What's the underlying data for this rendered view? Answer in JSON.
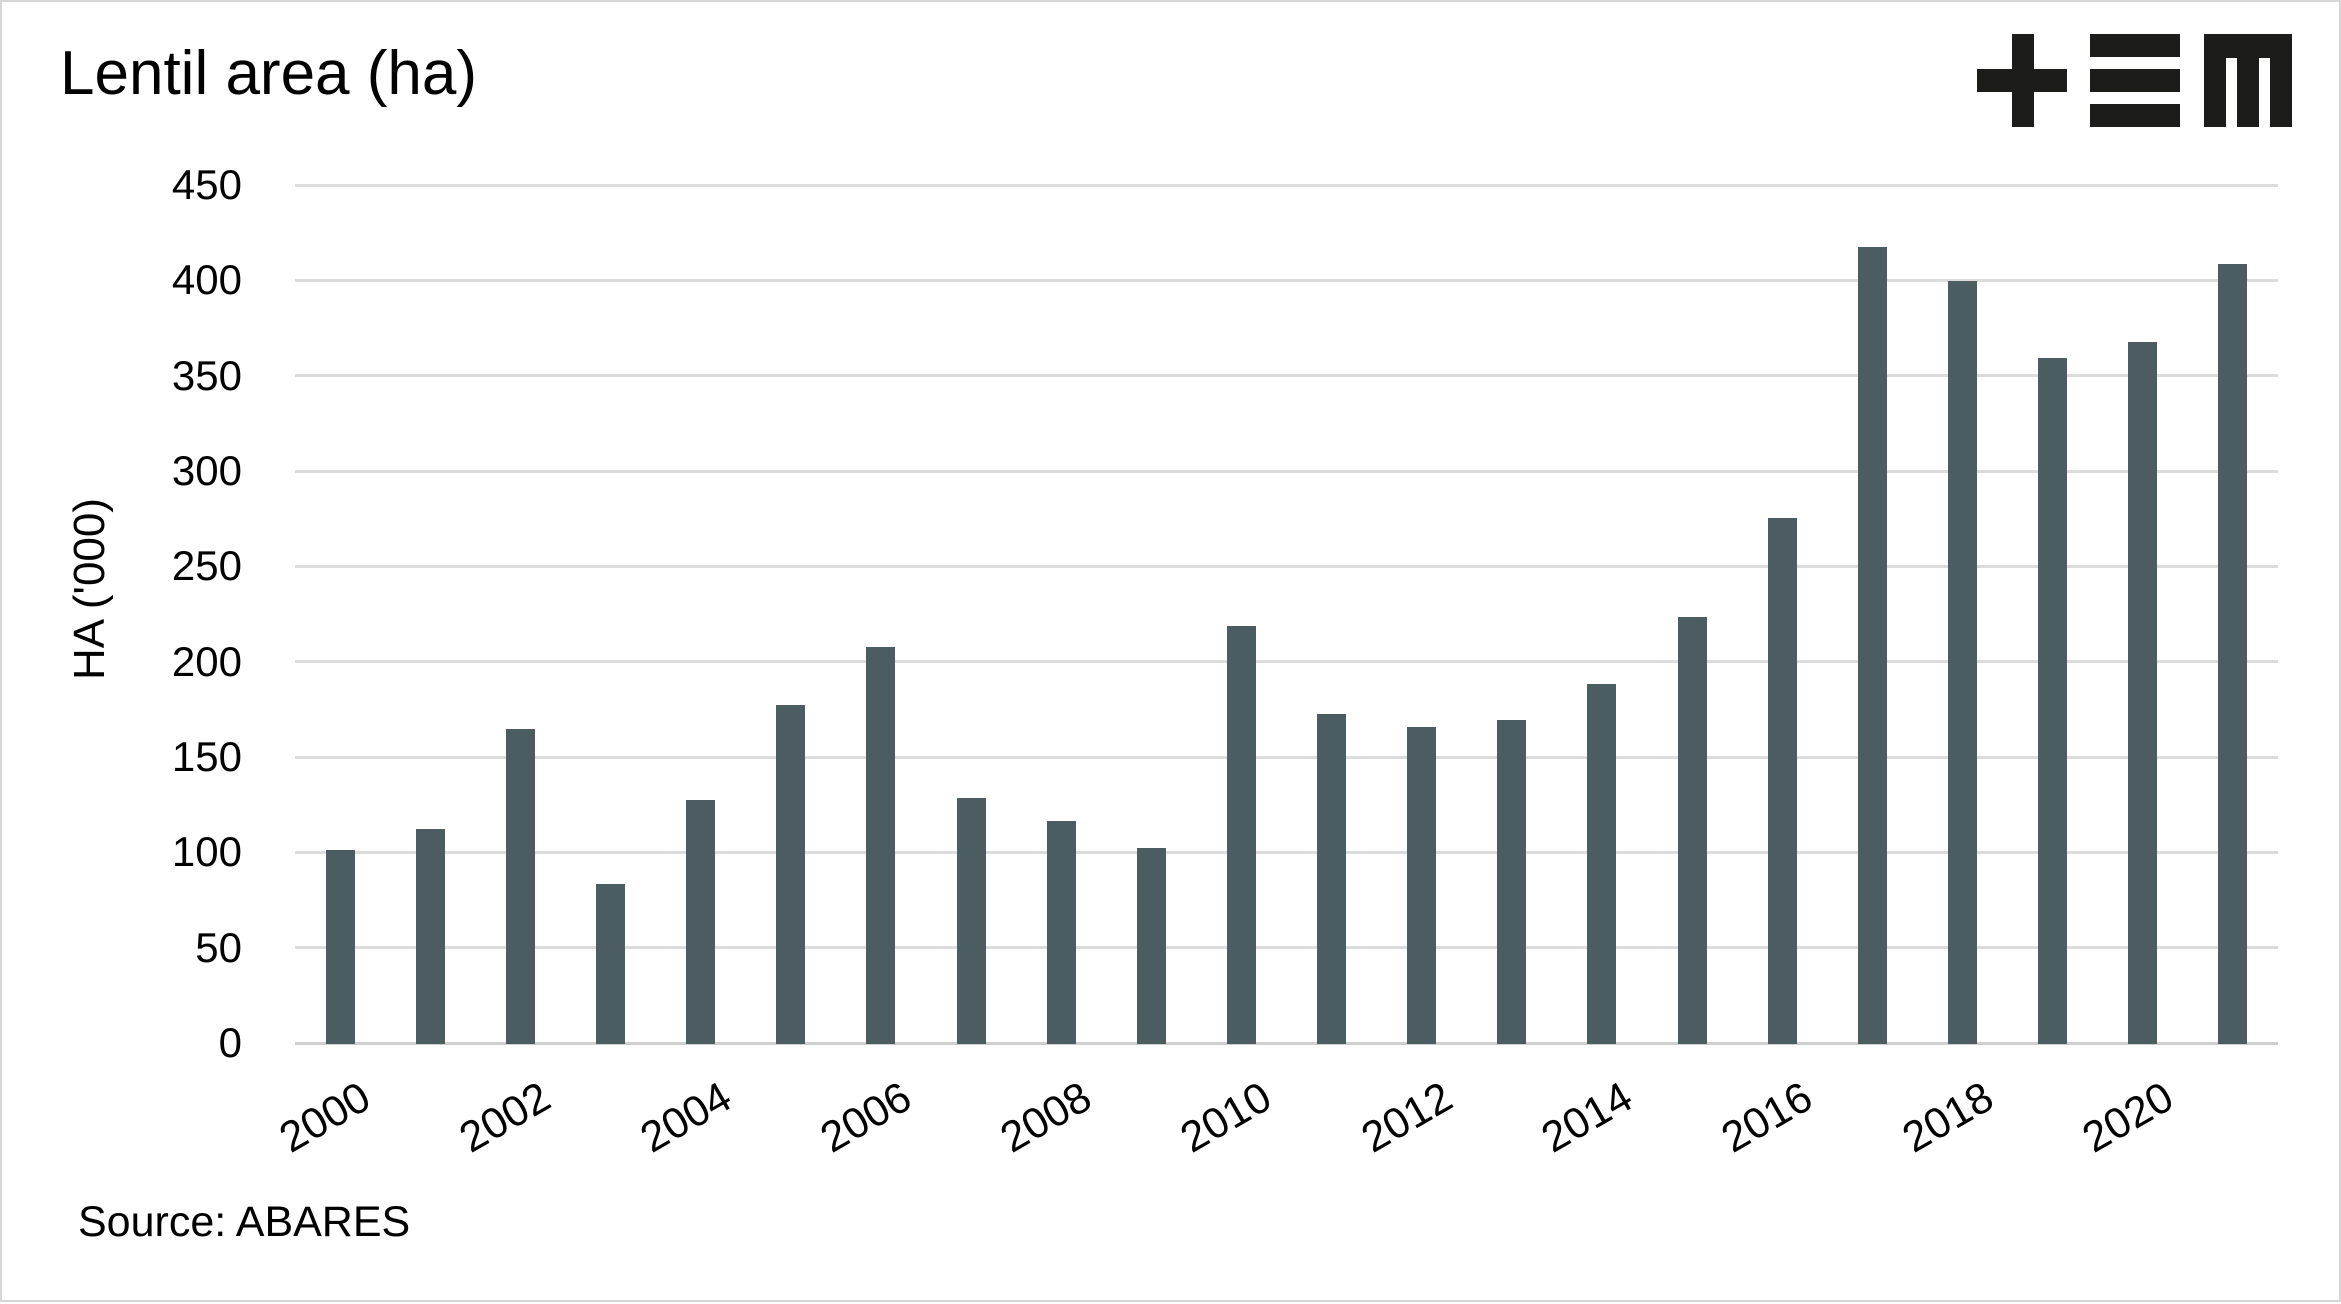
{
  "page": {
    "title": "Lentil area (ha)",
    "y_axis_label": "HA ('000)",
    "source_note": "Source: ABARES",
    "logo_alt": "+≡M"
  },
  "chart_data": {
    "type": "bar",
    "title": "Lentil area (ha)",
    "ylabel": "HA ('000)",
    "xlabel": "",
    "source": "Source: ABARES",
    "categories": [
      "2000",
      "2001",
      "2002",
      "2003",
      "2004",
      "2005",
      "2006",
      "2007",
      "2008",
      "2009",
      "2010",
      "2011",
      "2012",
      "2013",
      "2014",
      "2015",
      "2016",
      "2017",
      "2018",
      "2019",
      "2020",
      "2021"
    ],
    "values": [
      102,
      113,
      165,
      84,
      128,
      178,
      208,
      129,
      117,
      103,
      219,
      173,
      166,
      170,
      189,
      224,
      276,
      418,
      400,
      360,
      368,
      409
    ],
    "x_tick_labels": [
      "2000",
      "2002",
      "2004",
      "2006",
      "2008",
      "2010",
      "2012",
      "2014",
      "2016",
      "2018",
      "2020"
    ],
    "y_ticks": [
      0,
      50,
      100,
      150,
      200,
      250,
      300,
      350,
      400,
      450
    ],
    "ylim": [
      0,
      450
    ],
    "grid": "horizontal",
    "legend_position": "none",
    "x_tick_rotation_deg": -30,
    "bar_color": "#4b5d60",
    "grid_color": "#dcdcdc",
    "zero_line_color": "#cfcfcf",
    "text_color": "#000000"
  }
}
